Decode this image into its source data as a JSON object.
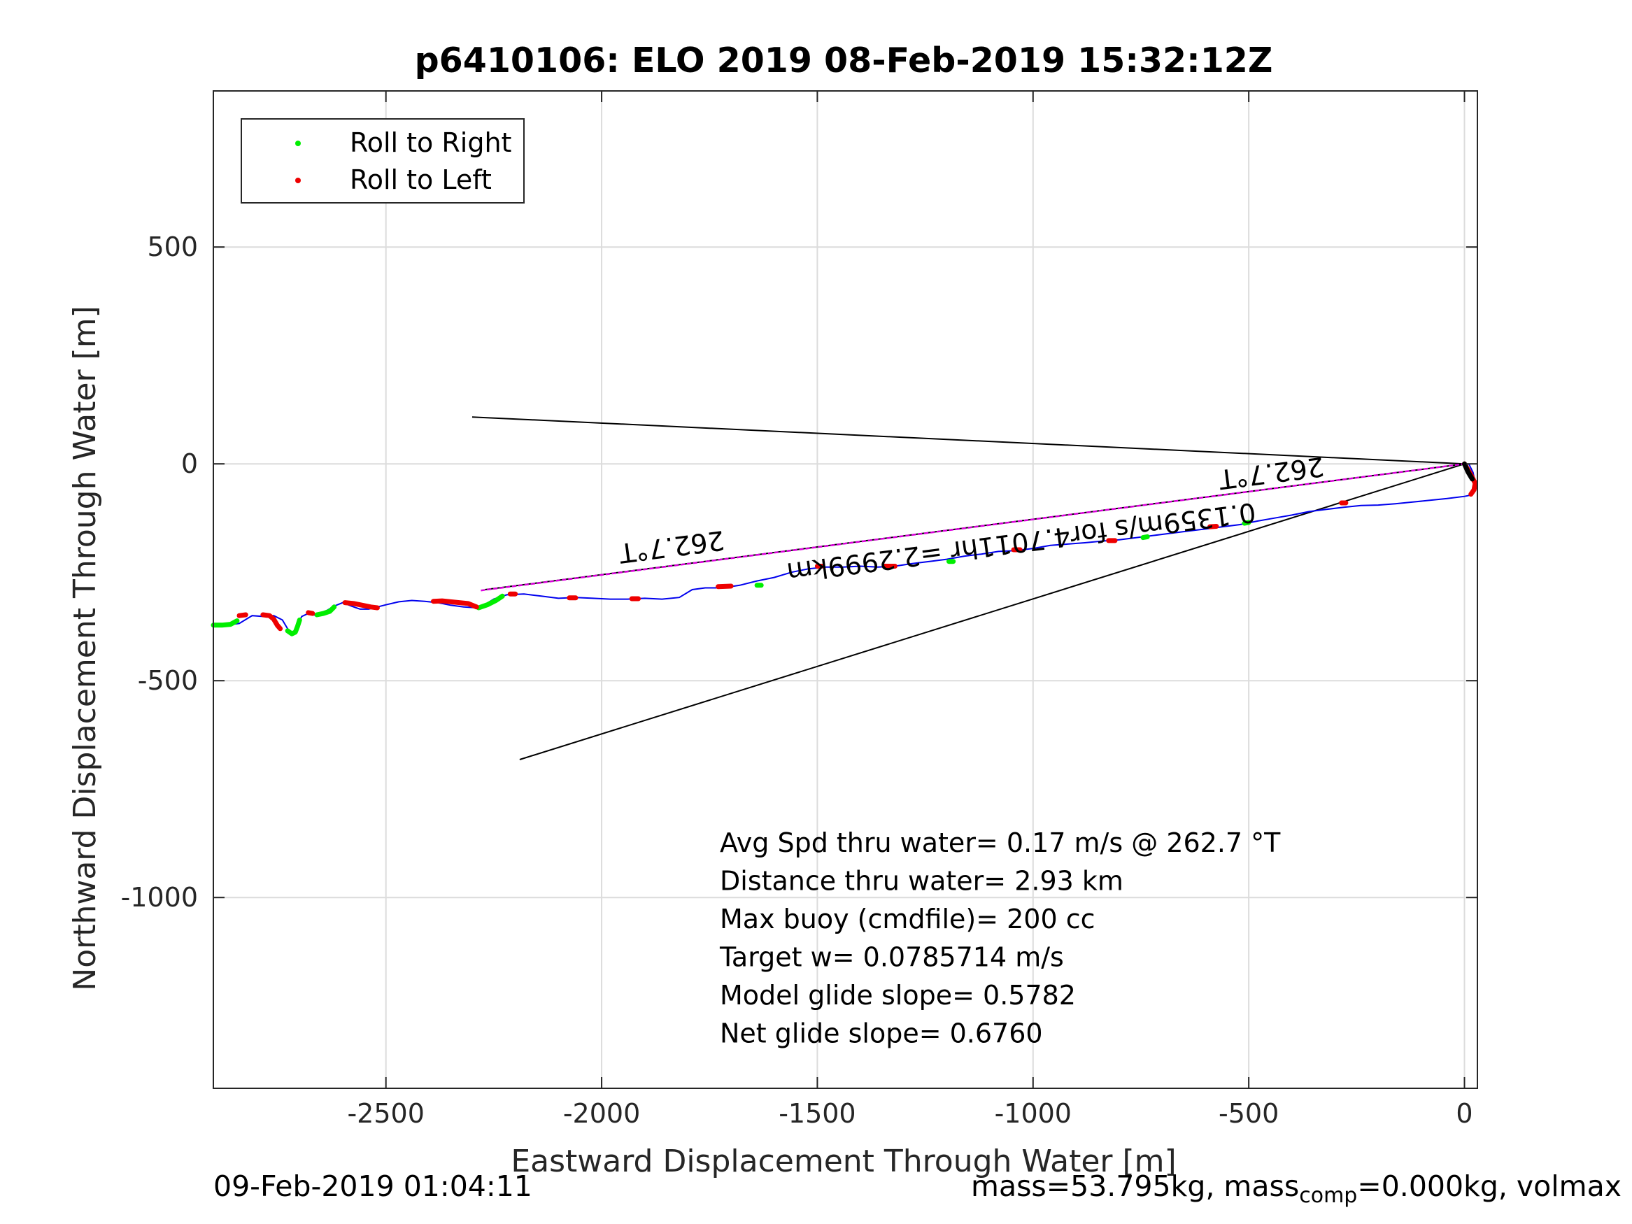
{
  "chart_data": {
    "type": "scatter",
    "title": "p6410106: ELO 2019 08-Feb-2019 15:32:12Z",
    "xlabel": "Eastward Displacement Through Water [m]",
    "ylabel": "Northward Displacement Through Water [m]",
    "xlim": [
      -2900,
      30
    ],
    "ylim": [
      -1440,
      860
    ],
    "xticks": [
      -2500,
      -2000,
      -1500,
      -1000,
      -500,
      0
    ],
    "yticks": [
      500,
      0,
      -500,
      -1000
    ],
    "xtick_labels": [
      "-2500",
      "-2000",
      "-1500",
      "-1000",
      "-500",
      "0"
    ],
    "ytick_labels": [
      "500",
      "0",
      "-500",
      "-1000"
    ],
    "grid": true,
    "legend_position": "top-left",
    "legend": [
      {
        "label": "Roll to Right",
        "color": "#00ee00"
      },
      {
        "label": "Roll to Left",
        "color": "#ee0000"
      }
    ],
    "track": {
      "color": "#0000ee",
      "x": [
        -2900,
        -2870,
        -2840,
        -2810,
        -2785,
        -2760,
        -2740,
        -2725,
        -2712,
        -2705,
        -2695,
        -2680,
        -2660,
        -2640,
        -2620,
        -2600,
        -2580,
        -2560,
        -2540,
        -2520,
        -2500,
        -2470,
        -2440,
        -2410,
        -2380,
        -2350,
        -2320,
        -2290,
        -2270,
        -2250,
        -2220,
        -2180,
        -2140,
        -2100,
        -2060,
        -2020,
        -1980,
        -1940,
        -1900,
        -1860,
        -1820,
        -1790,
        -1760,
        -1720,
        -1680,
        -1640,
        -1600,
        -1560,
        -1520,
        -1480,
        -1440,
        -1400,
        -1360,
        -1320,
        -1280,
        -1240,
        -1200,
        -1160,
        -1120,
        -1080,
        -1040,
        -1000,
        -960,
        -920,
        -880,
        -840,
        -800,
        -760,
        -720,
        -680,
        -640,
        -600,
        -560,
        -520,
        -480,
        -440,
        -400,
        -360,
        -320,
        -280,
        -240,
        -200,
        -160,
        -120,
        -80,
        -40,
        0,
        15,
        25,
        20,
        10
      ],
      "y": [
        -372,
        -372,
        -368,
        -350,
        -352,
        -350,
        -360,
        -385,
        -392,
        -370,
        -352,
        -345,
        -350,
        -340,
        -328,
        -320,
        -328,
        -335,
        -335,
        -330,
        -325,
        -318,
        -315,
        -317,
        -320,
        -326,
        -330,
        -332,
        -324,
        -312,
        -302,
        -300,
        -305,
        -310,
        -308,
        -310,
        -312,
        -312,
        -310,
        -312,
        -308,
        -290,
        -286,
        -286,
        -280,
        -270,
        -262,
        -250,
        -242,
        -238,
        -238,
        -236,
        -238,
        -236,
        -230,
        -225,
        -220,
        -213,
        -208,
        -202,
        -200,
        -195,
        -188,
        -185,
        -182,
        -178,
        -175,
        -170,
        -165,
        -160,
        -155,
        -150,
        -145,
        -140,
        -132,
        -125,
        -118,
        -110,
        -105,
        -100,
        -96,
        -95,
        -92,
        -88,
        -84,
        -80,
        -75,
        -72,
        -45,
        -20,
        0
      ]
    },
    "roll_right": {
      "color": "#00ee00",
      "segments": [
        {
          "x": [
            -2900,
            -2880,
            -2860,
            -2845
          ],
          "y": [
            -372,
            -372,
            -370,
            -362
          ]
        },
        {
          "x": [
            -2728,
            -2718,
            -2710,
            -2705,
            -2700
          ],
          "y": [
            -385,
            -392,
            -388,
            -375,
            -360
          ]
        },
        {
          "x": [
            -2660,
            -2645,
            -2630,
            -2620
          ],
          "y": [
            -348,
            -345,
            -340,
            -330
          ]
        },
        {
          "x": [
            -2285,
            -2265,
            -2245,
            -2230
          ],
          "y": [
            -332,
            -325,
            -315,
            -305
          ]
        },
        {
          "x": [
            -1640,
            -1630
          ],
          "y": [
            -280,
            -280
          ]
        },
        {
          "x": [
            -1195,
            -1185
          ],
          "y": [
            -225,
            -225
          ]
        },
        {
          "x": [
            -745,
            -735
          ],
          "y": [
            -170,
            -168
          ]
        },
        {
          "x": [
            -510,
            -500
          ],
          "y": [
            -137,
            -135
          ]
        }
      ]
    },
    "roll_left": {
      "color": "#ee0000",
      "segments": [
        {
          "x": [
            -2840,
            -2825
          ],
          "y": [
            -350,
            -348
          ]
        },
        {
          "x": [
            -2785,
            -2770,
            -2760,
            -2752,
            -2745
          ],
          "y": [
            -348,
            -350,
            -358,
            -372,
            -380
          ]
        },
        {
          "x": [
            -2680,
            -2670
          ],
          "y": [
            -343,
            -345
          ]
        },
        {
          "x": [
            -2595,
            -2575,
            -2555,
            -2535,
            -2520
          ],
          "y": [
            -320,
            -322,
            -326,
            -330,
            -332
          ]
        },
        {
          "x": [
            -2390,
            -2370,
            -2350,
            -2330,
            -2310,
            -2290
          ],
          "y": [
            -317,
            -316,
            -318,
            -320,
            -322,
            -330
          ]
        },
        {
          "x": [
            -2212,
            -2200
          ],
          "y": [
            -300,
            -300
          ]
        },
        {
          "x": [
            -2075,
            -2060
          ],
          "y": [
            -309,
            -309
          ]
        },
        {
          "x": [
            -1930,
            -1915
          ],
          "y": [
            -311,
            -311
          ]
        },
        {
          "x": [
            -1730,
            -1700
          ],
          "y": [
            -283,
            -282
          ]
        },
        {
          "x": [
            -1500,
            -1490
          ],
          "y": [
            -236,
            -236
          ]
        },
        {
          "x": [
            -1345,
            -1320
          ],
          "y": [
            -236,
            -236
          ]
        },
        {
          "x": [
            -1045,
            -1030
          ],
          "y": [
            -198,
            -198
          ]
        },
        {
          "x": [
            -825,
            -810
          ],
          "y": [
            -177,
            -177
          ]
        },
        {
          "x": [
            -590,
            -575
          ],
          "y": [
            -145,
            -144
          ]
        },
        {
          "x": [
            -285,
            -275
          ],
          "y": [
            -90,
            -90
          ]
        },
        {
          "x": [
            0,
            15,
            25,
            22,
            15
          ],
          "y": [
            0,
            -25,
            -45,
            -60,
            -70
          ]
        }
      ]
    },
    "black_lines": [
      {
        "x": [
          -2300,
          0
        ],
        "y": [
          108,
          0
        ]
      },
      {
        "x": [
          -2270,
          0
        ],
        "y": [
          -290,
          0
        ]
      },
      {
        "x": [
          -2190,
          0
        ],
        "y": [
          -682,
          0
        ]
      }
    ],
    "magenta_line": {
      "x": [
        -2280,
        0
      ],
      "y": [
        -292,
        0
      ],
      "color": "#dd00dd"
    },
    "rotated_labels": [
      {
        "text": "262.7°T",
        "x": -1840,
        "y": -170
      },
      {
        "text": "262.7°T",
        "x": -450,
        "y": 0
      },
      {
        "text": "0.1359m/s for4.7011hr =2.2999km",
        "x": -1030,
        "y": -160
      }
    ],
    "annotations": [
      "Avg Spd thru water=  0.17 m/s @ 262.7 °T",
      "Distance thru water=  2.93 km",
      "Max buoy (cmdfile)= 200 cc",
      "Target w= 0.0785714 m/s",
      "Model glide slope= 0.5782",
      "Net glide slope= 0.6760"
    ]
  },
  "footer": {
    "timestamp": "09-Feb-2019 01:04:11",
    "mass_text": "mass=53.795kg, mass",
    "mass_sub": "comp",
    "mass_rest": "=0.000kg, volmax"
  }
}
